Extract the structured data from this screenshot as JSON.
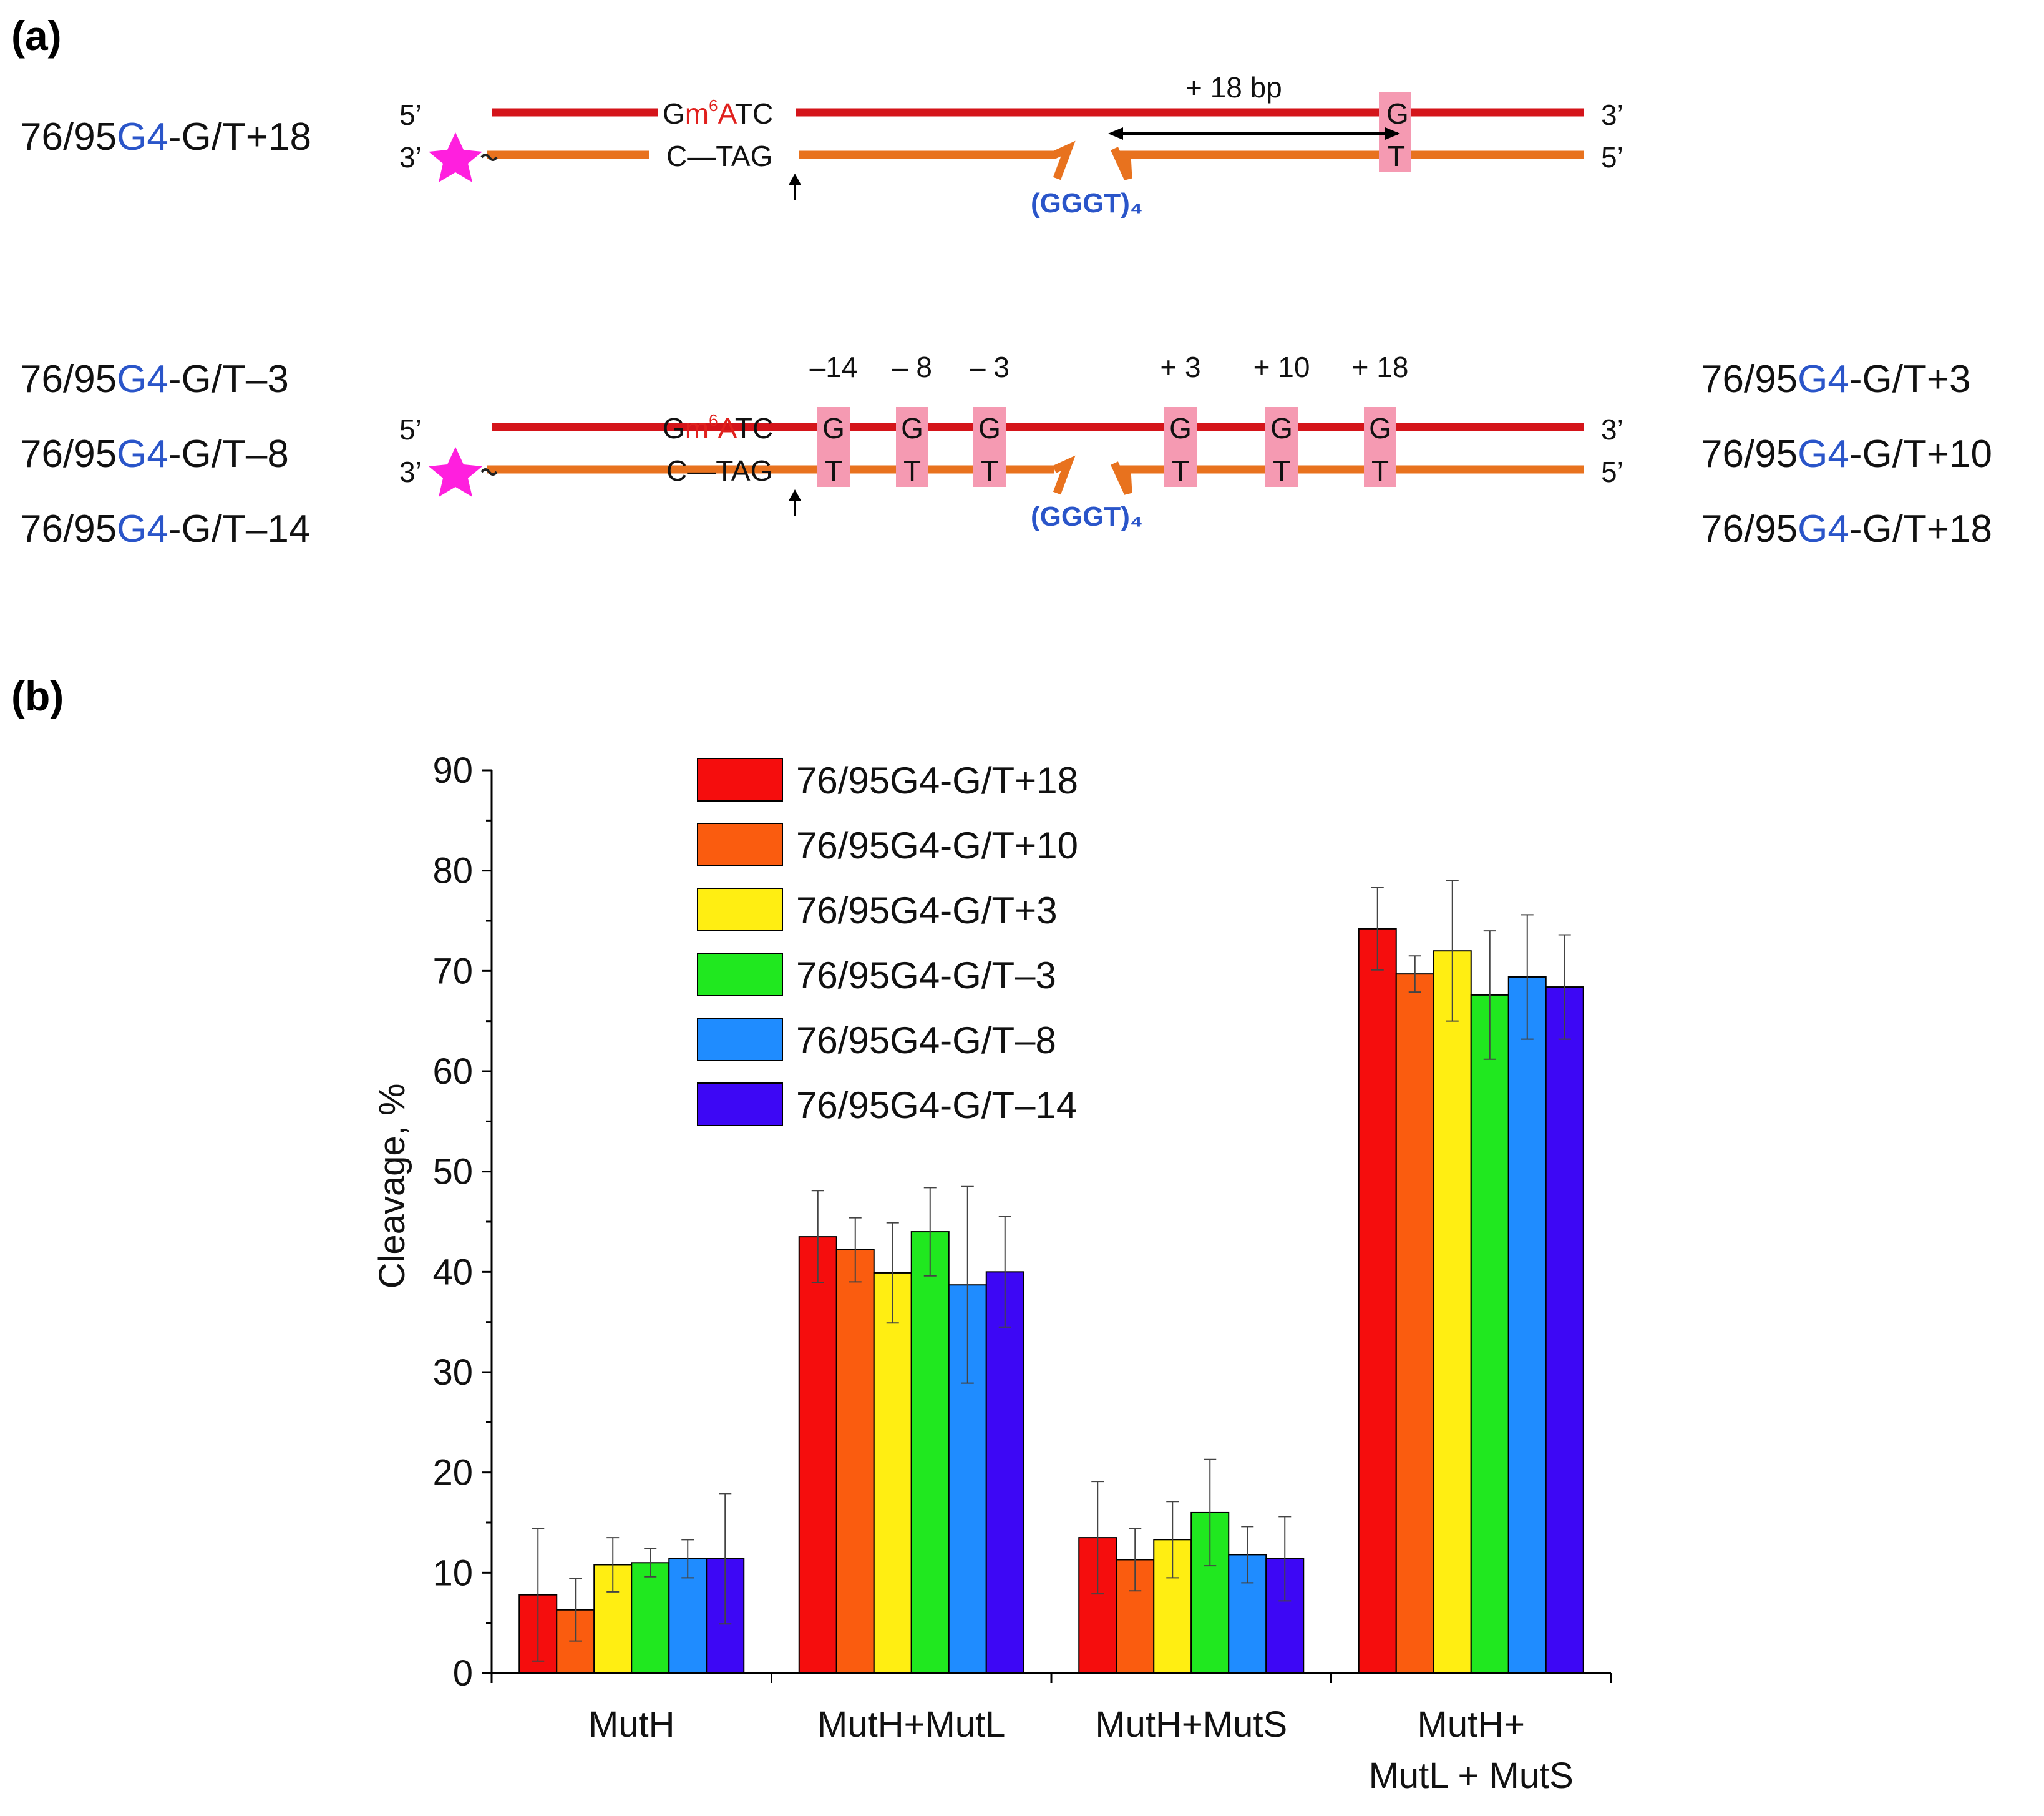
{
  "panel_a": {
    "label": "(a)",
    "top_construct": {
      "prefix": "76/95",
      "g4": "G4",
      "suffix": "-G/T+18"
    },
    "top_strand": {
      "five_prime": "5’",
      "three_prime": "3’",
      "site_G": "G",
      "site_m": "m",
      "site_6": "6",
      "site_A": "A",
      "site_TC": "TC",
      "distance_label": "+ 18 bp",
      "mismatch_top": "G"
    },
    "bottom_strand": {
      "three_prime": "3’",
      "five_prime": "5’",
      "site": "C—TAG",
      "mismatch_bottom": "T",
      "g4_label": "(GGGT)₄"
    },
    "second": {
      "constructs_left": [
        {
          "prefix": "76/95",
          "g4": "G4",
          "suffix": "-G/T–3"
        },
        {
          "prefix": "76/95",
          "g4": "G4",
          "suffix": "-G/T–8"
        },
        {
          "prefix": "76/95",
          "g4": "G4",
          "suffix": "-G/T–14"
        }
      ],
      "constructs_right": [
        {
          "prefix": "76/95",
          "g4": "G4",
          "suffix": "-G/T+3"
        },
        {
          "prefix": "76/95",
          "g4": "G4",
          "suffix": "-G/T+10"
        },
        {
          "prefix": "76/95",
          "g4": "G4",
          "suffix": "-G/T+18"
        }
      ],
      "positions": [
        "–14",
        "– 8",
        "– 3",
        "+ 3",
        "+ 10",
        "+ 18"
      ],
      "mismatch_top": "G",
      "mismatch_bottom": "T",
      "five_prime": "5’",
      "three_prime": "3’",
      "site": "C—TAG",
      "g4_label": "(GGGT)₄"
    }
  },
  "panel_b": {
    "label": "(b)"
  },
  "colors": {
    "top_strand": "#d4141a",
    "bottom_strand": "#e8721e",
    "mismatch_box": "#f59ab2",
    "star": "#ff1fde",
    "g4_blue": "#2a55c9"
  },
  "chart_data": {
    "type": "bar",
    "title": "",
    "xlabel": "",
    "ylabel": "Cleavage, %",
    "ylim": [
      0,
      90
    ],
    "yticks": [
      0,
      10,
      20,
      30,
      40,
      50,
      60,
      70,
      80,
      90
    ],
    "categories": [
      "MutH",
      "MutH+MutL",
      "MutH+MutS",
      "MutH+\nMutL + MutS"
    ],
    "category_lines": [
      [
        "MutH"
      ],
      [
        "MutH+MutL"
      ],
      [
        "MutH+MutS"
      ],
      [
        "MutH+",
        "MutL + MutS"
      ]
    ],
    "legend_position": "top-left",
    "series": [
      {
        "name": "76/95G4-G/T+18",
        "color": "#f50d0d",
        "values": [
          7.8,
          43.5,
          13.5,
          74.2
        ],
        "errors": [
          6.6,
          4.6,
          5.6,
          4.1
        ]
      },
      {
        "name": "76/95G4-G/T+10",
        "color": "#fa5c0f",
        "values": [
          6.3,
          42.2,
          11.3,
          69.7
        ],
        "errors": [
          3.1,
          3.2,
          3.1,
          1.8
        ]
      },
      {
        "name": "76/95G4-G/T+3",
        "color": "#ffee12",
        "values": [
          10.8,
          39.9,
          13.3,
          72.0
        ],
        "errors": [
          2.7,
          5.0,
          3.8,
          7.0
        ]
      },
      {
        "name": "76/95G4-G/T–3",
        "color": "#20e81f",
        "values": [
          11.0,
          44.0,
          16.0,
          67.6
        ],
        "errors": [
          1.4,
          4.4,
          5.3,
          6.4
        ]
      },
      {
        "name": "76/95G4-G/T–8",
        "color": "#1f8cff",
        "values": [
          11.4,
          38.7,
          11.8,
          69.4
        ],
        "errors": [
          1.9,
          9.8,
          2.8,
          6.2
        ]
      },
      {
        "name": "76/95G4-G/T–14",
        "color": "#3d07f5",
        "values": [
          11.4,
          40.0,
          11.4,
          68.4
        ],
        "errors": [
          6.5,
          5.5,
          4.2,
          5.2
        ]
      }
    ]
  }
}
